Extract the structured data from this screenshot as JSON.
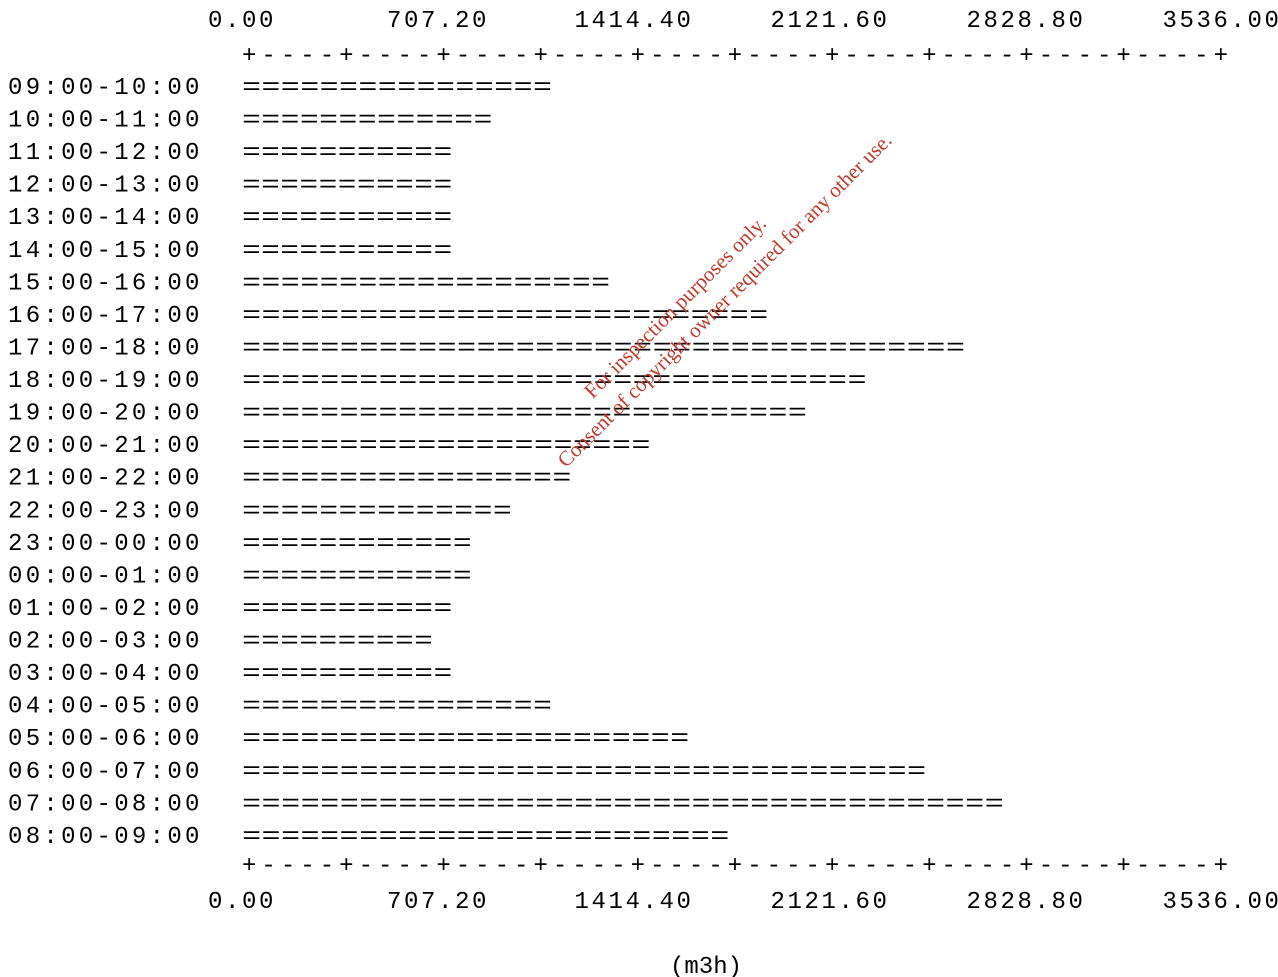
{
  "chart_data": {
    "type": "bar",
    "orientation": "horizontal",
    "categories": [
      "09:00-10:00",
      "10:00-11:00",
      "11:00-12:00",
      "12:00-13:00",
      "13:00-14:00",
      "14:00-15:00",
      "15:00-16:00",
      "16:00-17:00",
      "17:00-18:00",
      "18:00-19:00",
      "19:00-20:00",
      "20:00-21:00",
      "21:00-22:00",
      "22:00-23:00",
      "23:00-00:00",
      "00:00-01:00",
      "01:00-02:00",
      "02:00-03:00",
      "03:00-04:00",
      "04:00-05:00",
      "05:00-06:00",
      "06:00-07:00",
      "07:00-08:00",
      "08:00-09:00"
    ],
    "values": [
      1120,
      905,
      760,
      760,
      760,
      760,
      1330,
      1900,
      2610,
      2255,
      2040,
      1475,
      1190,
      975,
      830,
      830,
      760,
      690,
      760,
      1120,
      1615,
      2470,
      2750,
      1760
    ],
    "xlim": [
      0,
      3536
    ],
    "ticks": [
      "0.00",
      "707.20",
      "1414.40",
      "2121.60",
      "2828.80",
      "3536.00"
    ],
    "axis_line": "+----+----+----+----+----+----+----+----+----+----+",
    "unit_label": "(m3h)",
    "grid": false,
    "watermark": {
      "line1": "For inspection purposes only.",
      "line2": "Consent of copyright owner required for any other use."
    }
  }
}
